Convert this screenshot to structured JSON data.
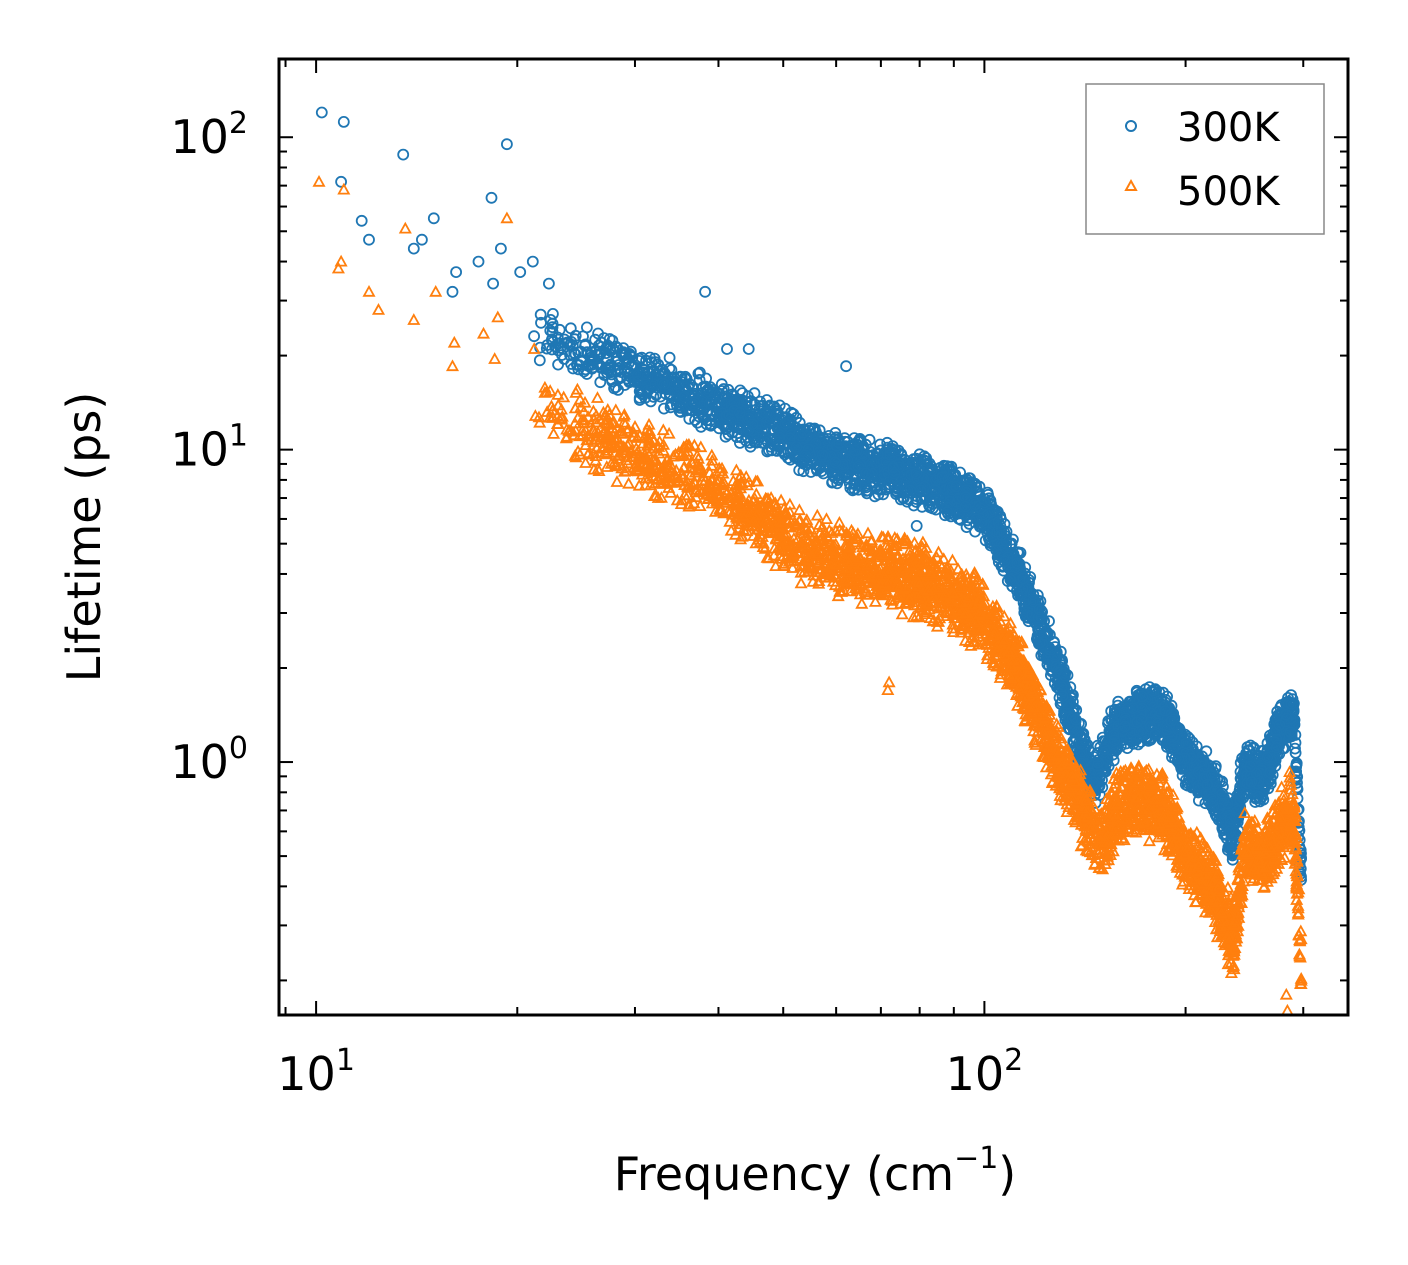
{
  "chart_data": {
    "type": "scatter",
    "title": "",
    "xlabel": "Frequency (cm",
    "xlabel_sup": "−1",
    "xlabel_close": ")",
    "ylabel": "Lifetime (ps)",
    "xscale": "log",
    "yscale": "log",
    "xlim": [
      8.8,
      350
    ],
    "ylim": [
      0.155,
      178
    ],
    "x_ticks": [
      {
        "value": 10,
        "base": "10",
        "exp": "1"
      },
      {
        "value": 100,
        "base": "10",
        "exp": "2"
      }
    ],
    "y_ticks": [
      {
        "value": 1,
        "base": "10",
        "exp": "0"
      },
      {
        "value": 10,
        "base": "10",
        "exp": "1"
      },
      {
        "value": 100,
        "base": "10",
        "exp": "2"
      }
    ],
    "legend_position": "top-right",
    "series": [
      {
        "name": "300K",
        "marker": "circle",
        "color": "#1f77b4",
        "outliers": [
          [
            10.2,
            120
          ],
          [
            11,
            112
          ],
          [
            10.9,
            72
          ],
          [
            13.5,
            88
          ],
          [
            11.7,
            54
          ],
          [
            12,
            47
          ],
          [
            14,
            44
          ],
          [
            14.4,
            47
          ],
          [
            15,
            55
          ],
          [
            16.2,
            37
          ],
          [
            16,
            32
          ],
          [
            17.5,
            40
          ],
          [
            18.3,
            64
          ],
          [
            18.9,
            44
          ],
          [
            19.3,
            95
          ],
          [
            18.4,
            34
          ],
          [
            20.2,
            37
          ],
          [
            21.1,
            40
          ],
          [
            22.3,
            34
          ],
          [
            38.2,
            32
          ],
          [
            41.2,
            21
          ],
          [
            44.4,
            21
          ],
          [
            62.1,
            18.5
          ],
          [
            79.2,
            5.7
          ]
        ],
        "trend": [
          [
            21,
            25
          ],
          [
            30,
            18
          ],
          [
            40,
            14
          ],
          [
            50,
            11.5
          ],
          [
            60,
            9.5
          ],
          [
            70,
            8.8
          ],
          [
            80,
            8.2
          ],
          [
            90,
            7.5
          ],
          [
            100,
            6.5
          ],
          [
            110,
            4.4
          ],
          [
            120,
            3.0
          ],
          [
            130,
            1.9
          ],
          [
            140,
            1.1
          ],
          [
            146,
            0.88
          ],
          [
            155,
            1.25
          ],
          [
            170,
            1.45
          ],
          [
            185,
            1.45
          ],
          [
            200,
            1.05
          ],
          [
            220,
            0.85
          ],
          [
            236,
            0.6
          ],
          [
            245,
            1.0
          ],
          [
            260,
            0.9
          ],
          [
            275,
            1.25
          ],
          [
            290,
            1.45
          ],
          [
            298,
            0.42
          ]
        ],
        "spread": [
          0.78,
          1.22
        ]
      },
      {
        "name": "500K",
        "marker": "triangle",
        "color": "#ff7f0e",
        "outliers": [
          [
            10.1,
            72
          ],
          [
            11,
            68
          ],
          [
            10.9,
            40
          ],
          [
            10.8,
            38
          ],
          [
            12,
            32
          ],
          [
            12.4,
            28
          ],
          [
            13.6,
            51
          ],
          [
            14,
            26
          ],
          [
            15.1,
            32
          ],
          [
            16.1,
            22
          ],
          [
            16,
            18.5
          ],
          [
            17.8,
            23.5
          ],
          [
            18.7,
            26.5
          ],
          [
            19.3,
            55
          ],
          [
            18.5,
            19.5
          ],
          [
            21.2,
            21
          ],
          [
            72,
            1.8
          ],
          [
            71.7,
            1.7
          ],
          [
            150,
            0.55
          ],
          [
            283,
            0.18
          ],
          [
            284,
            0.16
          ]
        ],
        "trend": [
          [
            21,
            14.5
          ],
          [
            30,
            10
          ],
          [
            40,
            7.5
          ],
          [
            50,
            5.5
          ],
          [
            60,
            4.5
          ],
          [
            70,
            4.2
          ],
          [
            80,
            3.9
          ],
          [
            90,
            3.5
          ],
          [
            100,
            3.0
          ],
          [
            110,
            2.2
          ],
          [
            120,
            1.5
          ],
          [
            130,
            1.0
          ],
          [
            140,
            0.72
          ],
          [
            150,
            0.58
          ],
          [
            160,
            0.75
          ],
          [
            170,
            0.8
          ],
          [
            185,
            0.72
          ],
          [
            200,
            0.52
          ],
          [
            220,
            0.4
          ],
          [
            236,
            0.27
          ],
          [
            245,
            0.55
          ],
          [
            260,
            0.5
          ],
          [
            275,
            0.6
          ],
          [
            290,
            0.75
          ],
          [
            298,
            0.21
          ]
        ],
        "spread": [
          0.72,
          1.32
        ]
      }
    ]
  }
}
